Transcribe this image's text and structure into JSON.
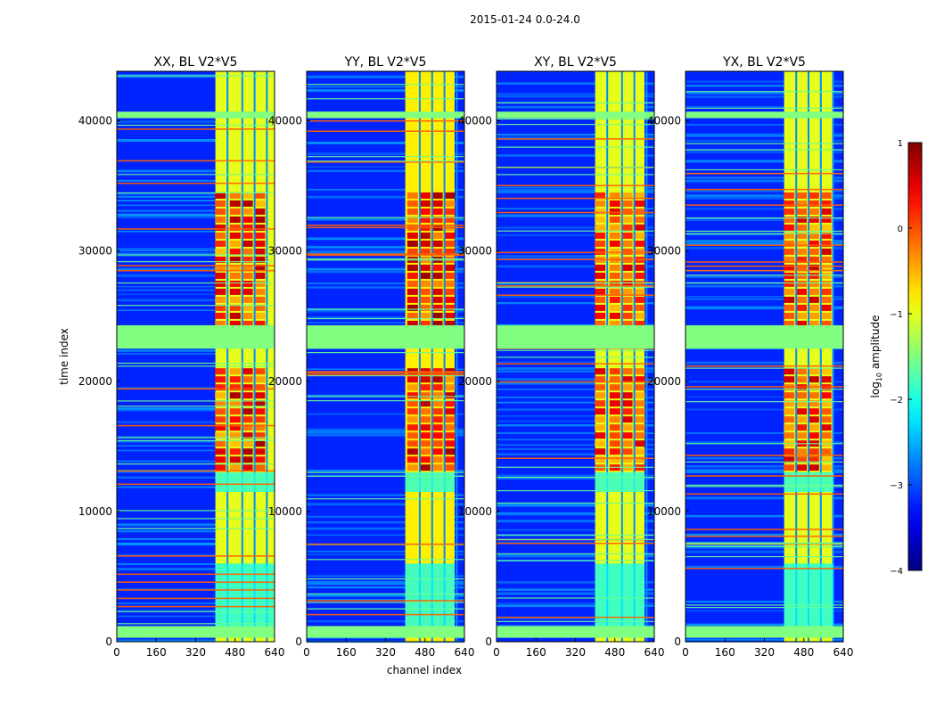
{
  "chart_data": {
    "type": "heatmap",
    "suptitle": "2015-01-24 0.0-24.0",
    "xlabel": "channel index",
    "ylabel": "time index",
    "xlim": [
      0,
      640
    ],
    "ylim": [
      0,
      43800
    ],
    "xticks": [
      0,
      160,
      320,
      480,
      640
    ],
    "yticks": [
      0,
      10000,
      20000,
      30000,
      40000
    ],
    "colorbar": {
      "label": "log10 amplitude",
      "label_base": "log",
      "label_sub": "10",
      "label_rest": "amplitude",
      "range": [
        -4,
        1
      ],
      "ticks": [
        1,
        0,
        -1,
        -2,
        -3,
        -4
      ],
      "tick_labels": [
        "1",
        "0",
        "−1",
        "−2",
        "−3",
        "−4"
      ],
      "colormap": "jet"
    },
    "panels": [
      {
        "title": "XX, BL V2*V5",
        "band_start": 400,
        "band_end": 640,
        "band_value": -1.0,
        "peak_value": 0.8,
        "hot_cols": [
          420,
          480,
          530,
          580
        ]
      },
      {
        "title": "YY, BL V2*V5",
        "band_start": 400,
        "band_end": 600,
        "band_value": -0.8,
        "peak_value": 0.9,
        "hot_cols": [
          430,
          480,
          530,
          580
        ]
      },
      {
        "title": "XY, BL V2*V5",
        "band_start": 400,
        "band_end": 600,
        "band_value": -1.0,
        "peak_value": 0.6,
        "hot_cols": [
          420,
          480,
          530,
          580
        ]
      },
      {
        "title": "YX, BL V2*V5",
        "band_start": 400,
        "band_end": 600,
        "band_value": -1.0,
        "peak_value": 0.7,
        "hot_cols": [
          420,
          470,
          520,
          570
        ]
      }
    ],
    "background_value": -3.2,
    "flagged_rows": [
      {
        "t_start": 22500,
        "t_end": 24300,
        "value": -1.5
      },
      {
        "t_start": 300,
        "t_end": 1200,
        "value": -1.5
      },
      {
        "t_start": 40200,
        "t_end": 40700,
        "value": -1.5
      }
    ],
    "active_periods": [
      {
        "t_start": 24300,
        "t_end": 34500
      },
      {
        "t_start": 13000,
        "t_end": 21000
      }
    ]
  }
}
